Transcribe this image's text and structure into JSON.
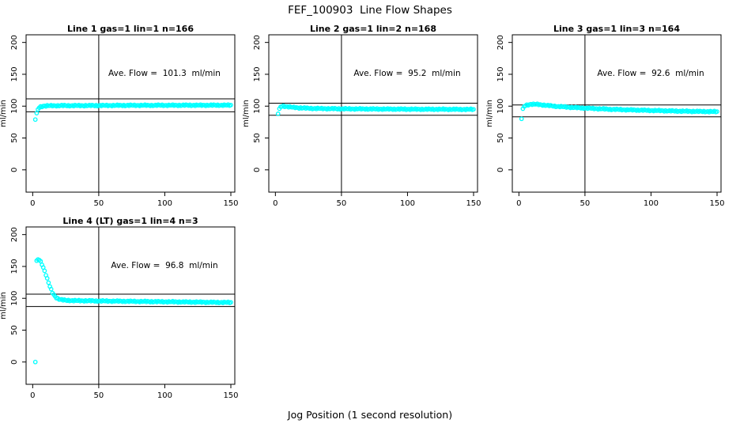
{
  "figure_title": "FEF_100903  Line Flow Shapes",
  "xlabel_shared": "Jog Position (1 second resolution)",
  "colors": {
    "marker": "#00ffff",
    "axes": "#000000",
    "background": "#ffffff",
    "text": "#000000"
  },
  "chart_data": [
    {
      "type": "scatter",
      "title": "Line 1 gas=1 lin=1 n=166",
      "line": 1,
      "gas": 1,
      "lin": 1,
      "n": 166,
      "annotation": "Ave. Flow =  101.3  ml/min",
      "ave_flow_ml_min": 101.3,
      "ylabel": "ml/min",
      "xticks": [
        0,
        50,
        100,
        150
      ],
      "yticks": [
        0,
        50,
        100,
        150,
        200
      ],
      "xlim": [
        -5,
        153
      ],
      "ylim": [
        -35,
        212
      ],
      "vline_x": 50,
      "hlines": [
        111.4,
        91.2
      ],
      "marker": "open-circle",
      "x_resolution": 1,
      "x_start": 2,
      "x_end": 150,
      "series_keypoints": [
        [
          2,
          79
        ],
        [
          3,
          89
        ],
        [
          4,
          95
        ],
        [
          5,
          97.5
        ],
        [
          6,
          99
        ],
        [
          8,
          100.2
        ],
        [
          12,
          100.6
        ],
        [
          20,
          100.8
        ],
        [
          40,
          100.9
        ],
        [
          70,
          101.2
        ],
        [
          110,
          101.4
        ],
        [
          150,
          101.5
        ]
      ]
    },
    {
      "type": "scatter",
      "title": "Line 2 gas=1 lin=2 n=168",
      "line": 2,
      "gas": 1,
      "lin": 2,
      "n": 168,
      "annotation": "Ave. Flow =  95.2  ml/min",
      "ave_flow_ml_min": 95.2,
      "ylabel": "ml/min",
      "xticks": [
        0,
        50,
        100,
        150
      ],
      "yticks": [
        0,
        50,
        100,
        150,
        200
      ],
      "xlim": [
        -5,
        153
      ],
      "ylim": [
        -35,
        212
      ],
      "vline_x": 50,
      "hlines": [
        104.7,
        85.7
      ],
      "marker": "open-circle",
      "x_resolution": 1,
      "x_start": 2,
      "x_end": 150,
      "series_keypoints": [
        [
          2,
          88
        ],
        [
          3,
          96
        ],
        [
          4,
          99
        ],
        [
          6,
          100
        ],
        [
          9,
          99.3
        ],
        [
          13,
          98.2
        ],
        [
          18,
          97.3
        ],
        [
          28,
          96.4
        ],
        [
          45,
          95.9
        ],
        [
          80,
          95.4
        ],
        [
          120,
          95.1
        ],
        [
          150,
          94.9
        ]
      ]
    },
    {
      "type": "scatter",
      "title": "Line 3 gas=1 lin=3 n=164",
      "line": 3,
      "gas": 1,
      "lin": 3,
      "n": 164,
      "annotation": "Ave. Flow =  92.6  ml/min",
      "ave_flow_ml_min": 92.6,
      "ylabel": "ml/min",
      "xticks": [
        0,
        50,
        100,
        150
      ],
      "yticks": [
        0,
        50,
        100,
        150,
        200
      ],
      "xlim": [
        -5,
        153
      ],
      "ylim": [
        -35,
        212
      ],
      "vline_x": 50,
      "hlines": [
        101.9,
        83.3
      ],
      "marker": "open-circle",
      "x_resolution": 1,
      "x_start": 2,
      "x_end": 150,
      "series_keypoints": [
        [
          2,
          80
        ],
        [
          3,
          96
        ],
        [
          4,
          99.5
        ],
        [
          6,
          101.8
        ],
        [
          9,
          103
        ],
        [
          14,
          102.8
        ],
        [
          20,
          101.4
        ],
        [
          30,
          99.4
        ],
        [
          45,
          97.4
        ],
        [
          70,
          95
        ],
        [
          100,
          93.2
        ],
        [
          125,
          92
        ],
        [
          150,
          91.3
        ]
      ]
    },
    {
      "type": "scatter",
      "title": "Line 4 (LT) gas=1 lin=4 n=3",
      "line": 4,
      "line_note": "LT",
      "gas": 1,
      "lin": 4,
      "n": 3,
      "annotation": "Ave. Flow =  96.8  ml/min",
      "ave_flow_ml_min": 96.8,
      "ylabel": "ml/min",
      "xticks": [
        0,
        50,
        100,
        150
      ],
      "yticks": [
        0,
        50,
        100,
        150,
        200
      ],
      "xlim": [
        -5,
        153
      ],
      "ylim": [
        -35,
        212
      ],
      "vline_x": 50,
      "hlines": [
        106.5,
        87.1
      ],
      "marker": "open-circle",
      "x_resolution": 1,
      "x_start": 2,
      "x_end": 150,
      "series_keypoints": [
        [
          2,
          0
        ],
        [
          3,
          159
        ],
        [
          4,
          161
        ],
        [
          5,
          160
        ],
        [
          6,
          157.5
        ],
        [
          7,
          153.5
        ],
        [
          8,
          148.5
        ],
        [
          9,
          143
        ],
        [
          10,
          137
        ],
        [
          11,
          130.5
        ],
        [
          12,
          124.5
        ],
        [
          13,
          118.5
        ],
        [
          14,
          113.5
        ],
        [
          15,
          109
        ],
        [
          16,
          105.5
        ],
        [
          17,
          103
        ],
        [
          18,
          101
        ],
        [
          19,
          99.6
        ],
        [
          20,
          98.7
        ],
        [
          22,
          97.6
        ],
        [
          25,
          96.9
        ],
        [
          30,
          96.4
        ],
        [
          40,
          96.1
        ],
        [
          60,
          95.6
        ],
        [
          90,
          94.8
        ],
        [
          120,
          94.1
        ],
        [
          150,
          93.4
        ]
      ]
    }
  ]
}
